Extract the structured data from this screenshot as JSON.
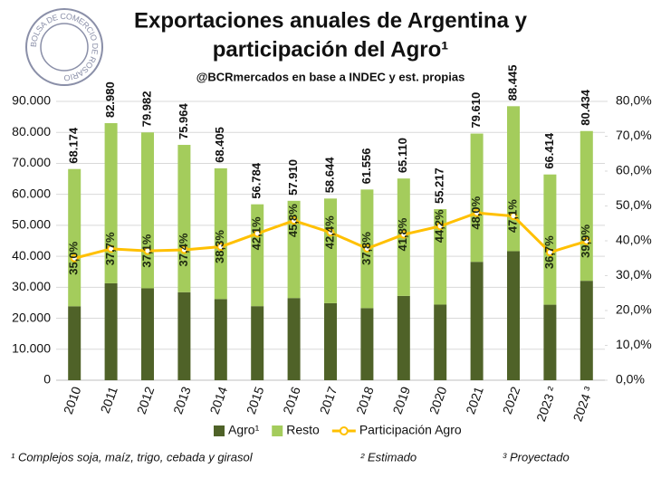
{
  "chart_data": {
    "type": "bar_line",
    "title": [
      "Exportaciones anuales de Argentina y",
      "participación del Agro¹"
    ],
    "subtitle": "@BCRmercados en base a INDEC y est. propias",
    "logo_text": "BOLSA DE COMERCIO DE ROSARIO",
    "categories": [
      "2010",
      "2011",
      "2012",
      "2013",
      "2014",
      "2015",
      "2016",
      "2017",
      "2018",
      "2019",
      "2020",
      "2021",
      "2022",
      "2023 ²",
      "2024 ³"
    ],
    "series": [
      {
        "name": "Agro¹",
        "color": "#4f6228",
        "values": [
          23861,
          31283,
          29673,
          28411,
          26199,
          23906,
          26523,
          24865,
          23268,
          27216,
          24406,
          38213,
          41658,
          24374,
          32093
        ]
      },
      {
        "name": "Resto",
        "color": "#a4cc5c",
        "values": [
          44313,
          51697,
          50309,
          47553,
          42206,
          32878,
          31387,
          33779,
          38288,
          37894,
          30811,
          41397,
          46787,
          42040,
          48341
        ]
      },
      {
        "name": "Participación Agro",
        "color": "#ffc000",
        "axis": "y2",
        "values": [
          35.0,
          37.7,
          37.1,
          37.4,
          38.3,
          42.1,
          45.8,
          42.4,
          37.8,
          41.8,
          44.2,
          48.0,
          47.1,
          36.7,
          39.9
        ],
        "value_labels": [
          "35,0%",
          "37,7%",
          "37,1%",
          "37,4%",
          "38,3%",
          "42,1%",
          "45,8%",
          "42,4%",
          "37,8%",
          "41,8%",
          "44,2%",
          "48,0%",
          "47,1%",
          "36,7%",
          "39,9%"
        ]
      }
    ],
    "totals": {
      "values": [
        68174,
        82980,
        79982,
        75964,
        68405,
        56784,
        57910,
        58644,
        61556,
        65110,
        55217,
        79610,
        88445,
        66414,
        80434
      ],
      "value_labels": [
        "68.174",
        "82.980",
        "79.982",
        "75.964",
        "68.405",
        "56.784",
        "57.910",
        "58.644",
        "61.556",
        "65.110",
        "55.217",
        "79.610",
        "88.445",
        "66.414",
        "80.434"
      ]
    },
    "ylim": [
      0,
      90000
    ],
    "yticks": [
      {
        "value": 0,
        "label": "0"
      },
      {
        "value": 10000,
        "label": "10.000"
      },
      {
        "value": 20000,
        "label": "20.000"
      },
      {
        "value": 30000,
        "label": "30.000"
      },
      {
        "value": 40000,
        "label": "40.000"
      },
      {
        "value": 50000,
        "label": "50.000"
      },
      {
        "value": 60000,
        "label": "60.000"
      },
      {
        "value": 70000,
        "label": "70.000"
      },
      {
        "value": 80000,
        "label": "80.000"
      },
      {
        "value": 90000,
        "label": "90.000"
      }
    ],
    "y2lim": [
      0,
      80
    ],
    "y2ticks": [
      {
        "value": 0,
        "label": "0,0%"
      },
      {
        "value": 10,
        "label": "10,0%"
      },
      {
        "value": 20,
        "label": "20,0%"
      },
      {
        "value": 30,
        "label": "30,0%"
      },
      {
        "value": 40,
        "label": "40,0%"
      },
      {
        "value": 50,
        "label": "50,0%"
      },
      {
        "value": 60,
        "label": "60,0%"
      },
      {
        "value": 70,
        "label": "70,0%"
      },
      {
        "value": 80,
        "label": "80,0%"
      }
    ],
    "grid": true,
    "legend": "bottom",
    "footnotes": [
      "¹ Complejos soja, maíz, trigo, cebada y girasol",
      "² Estimado",
      "³ Proyectado"
    ]
  }
}
